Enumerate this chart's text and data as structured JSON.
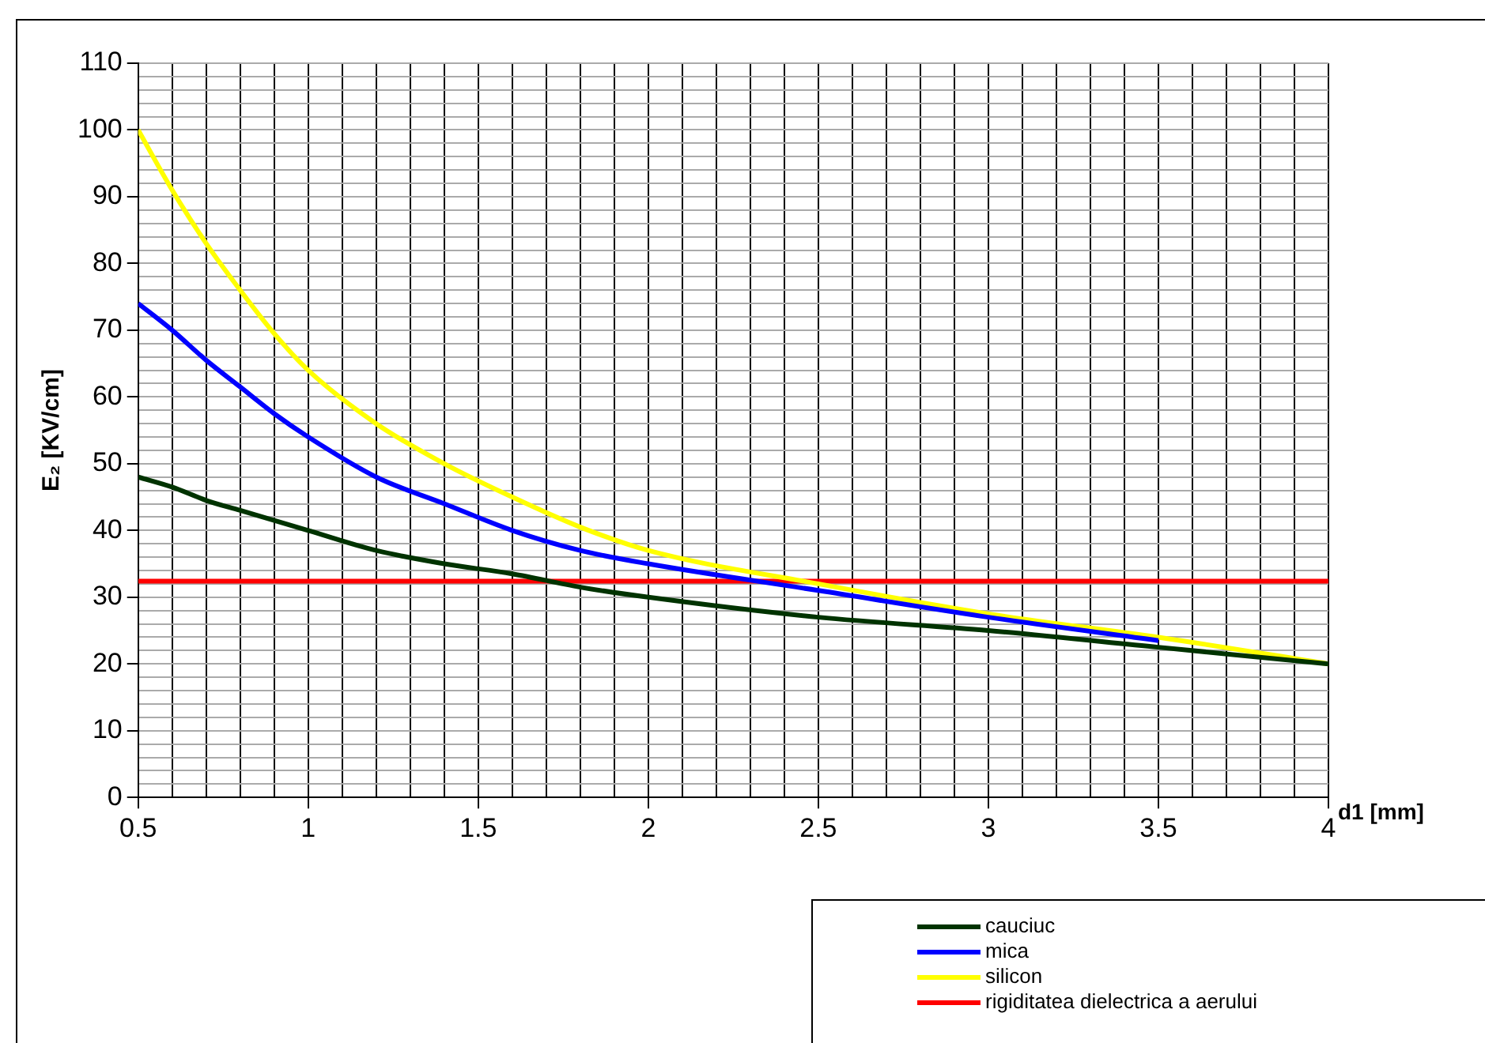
{
  "chart_data": {
    "type": "line",
    "xlabel": "d1 [mm]",
    "ylabel": "E₂ [KV/cm]",
    "xlim": [
      0.5,
      4
    ],
    "xticks": [
      0.5,
      {
        "value": 0.6,
        "label": null
      },
      {
        "value": 0.7,
        "label": null
      },
      {
        "value": 0.8,
        "label": null
      },
      {
        "value": 0.9,
        "label": null
      },
      1,
      {
        "value": 1.1,
        "label": null
      },
      {
        "value": 1.2,
        "label": null
      },
      {
        "value": 1.3,
        "label": null
      },
      {
        "value": 1.4,
        "label": null
      },
      1.5,
      {
        "value": 1.6,
        "label": null
      },
      {
        "value": 1.7,
        "label": null
      },
      {
        "value": 1.8,
        "label": null
      },
      {
        "value": 1.9,
        "label": null
      },
      2,
      {
        "value": 2.1,
        "label": null
      },
      {
        "value": 2.2,
        "label": null
      },
      {
        "value": 2.3,
        "label": null
      },
      {
        "value": 2.4,
        "label": null
      },
      2.5,
      {
        "value": 2.6,
        "label": null
      },
      {
        "value": 2.7,
        "label": null
      },
      {
        "value": 2.8,
        "label": null
      },
      {
        "value": 2.9,
        "label": null
      },
      3,
      {
        "value": 3.1,
        "label": null
      },
      {
        "value": 3.2,
        "label": null
      },
      {
        "value": 3.3,
        "label": null
      },
      {
        "value": 3.4,
        "label": null
      },
      3.5,
      {
        "value": 3.6,
        "label": null
      },
      {
        "value": 3.7,
        "label": null
      },
      {
        "value": 3.8,
        "label": null
      },
      {
        "value": 3.9,
        "label": null
      },
      4
    ],
    "ylim": [
      0,
      110
    ],
    "yticks": [
      0,
      {
        "value": 2,
        "label": null
      },
      {
        "value": 4,
        "label": null
      },
      {
        "value": 6,
        "label": null
      },
      {
        "value": 8,
        "label": null
      },
      10,
      {
        "value": 12,
        "label": null
      },
      {
        "value": 14,
        "label": null
      },
      {
        "value": 16,
        "label": null
      },
      {
        "value": 18,
        "label": null
      },
      20,
      {
        "value": 22,
        "label": null
      },
      {
        "value": 24,
        "label": null
      },
      {
        "value": 26,
        "label": null
      },
      {
        "value": 28,
        "label": null
      },
      30,
      {
        "value": 32,
        "label": null
      },
      {
        "value": 34,
        "label": null
      },
      {
        "value": 36,
        "label": null
      },
      {
        "value": 38,
        "label": null
      },
      40,
      {
        "value": 42,
        "label": null
      },
      {
        "value": 44,
        "label": null
      },
      {
        "value": 46,
        "label": null
      },
      {
        "value": 48,
        "label": null
      },
      50,
      {
        "value": 52,
        "label": null
      },
      {
        "value": 54,
        "label": null
      },
      {
        "value": 56,
        "label": null
      },
      {
        "value": 58,
        "label": null
      },
      60,
      {
        "value": 62,
        "label": null
      },
      {
        "value": 64,
        "label": null
      },
      {
        "value": 66,
        "label": null
      },
      {
        "value": 68,
        "label": null
      },
      70,
      {
        "value": 72,
        "label": null
      },
      {
        "value": 74,
        "label": null
      },
      {
        "value": 76,
        "label": null
      },
      {
        "value": 78,
        "label": null
      },
      80,
      {
        "value": 82,
        "label": null
      },
      {
        "value": 84,
        "label": null
      },
      {
        "value": 86,
        "label": null
      },
      {
        "value": 88,
        "label": null
      },
      90,
      {
        "value": 92,
        "label": null
      },
      {
        "value": 94,
        "label": null
      },
      {
        "value": 96,
        "label": null
      },
      {
        "value": 98,
        "label": null
      },
      100,
      {
        "value": 102,
        "label": null
      },
      {
        "value": 104,
        "label": null
      },
      {
        "value": 106,
        "label": null
      },
      {
        "value": 108,
        "label": null
      },
      110
    ],
    "grid": true,
    "legend": "bottom right",
    "marker": "none",
    "line_style": "solid",
    "x": [
      0.5,
      0.6,
      0.7,
      0.8,
      0.9,
      1,
      1.2,
      1.4,
      1.6,
      1.8,
      2,
      2.5,
      3,
      3.5,
      4
    ],
    "series": [
      {
        "name": "cauciuc",
        "color": "#003300",
        "values": [
          48,
          46.5,
          44.5,
          43,
          41.5,
          40,
          37,
          35,
          33.5,
          31.5,
          30,
          27,
          25,
          22.5,
          20
        ]
      },
      {
        "name": "mica",
        "color": "#0000ff",
        "values": [
          74,
          70,
          65.5,
          61.5,
          57.5,
          54,
          48,
          44,
          40,
          37,
          35,
          31,
          27,
          23.5,
          null
        ]
      },
      {
        "name": "silicon",
        "color": "#ffff00",
        "values": [
          100,
          91,
          83,
          76,
          69.5,
          64,
          56,
          50,
          45,
          40.5,
          37,
          32,
          27.5,
          24,
          20
        ]
      },
      {
        "name": "rigiditatea dielectrica a aerului",
        "color": "#ff0000",
        "x": [
          0.5,
          4
        ],
        "values": [
          32.4,
          32.4
        ]
      }
    ]
  }
}
